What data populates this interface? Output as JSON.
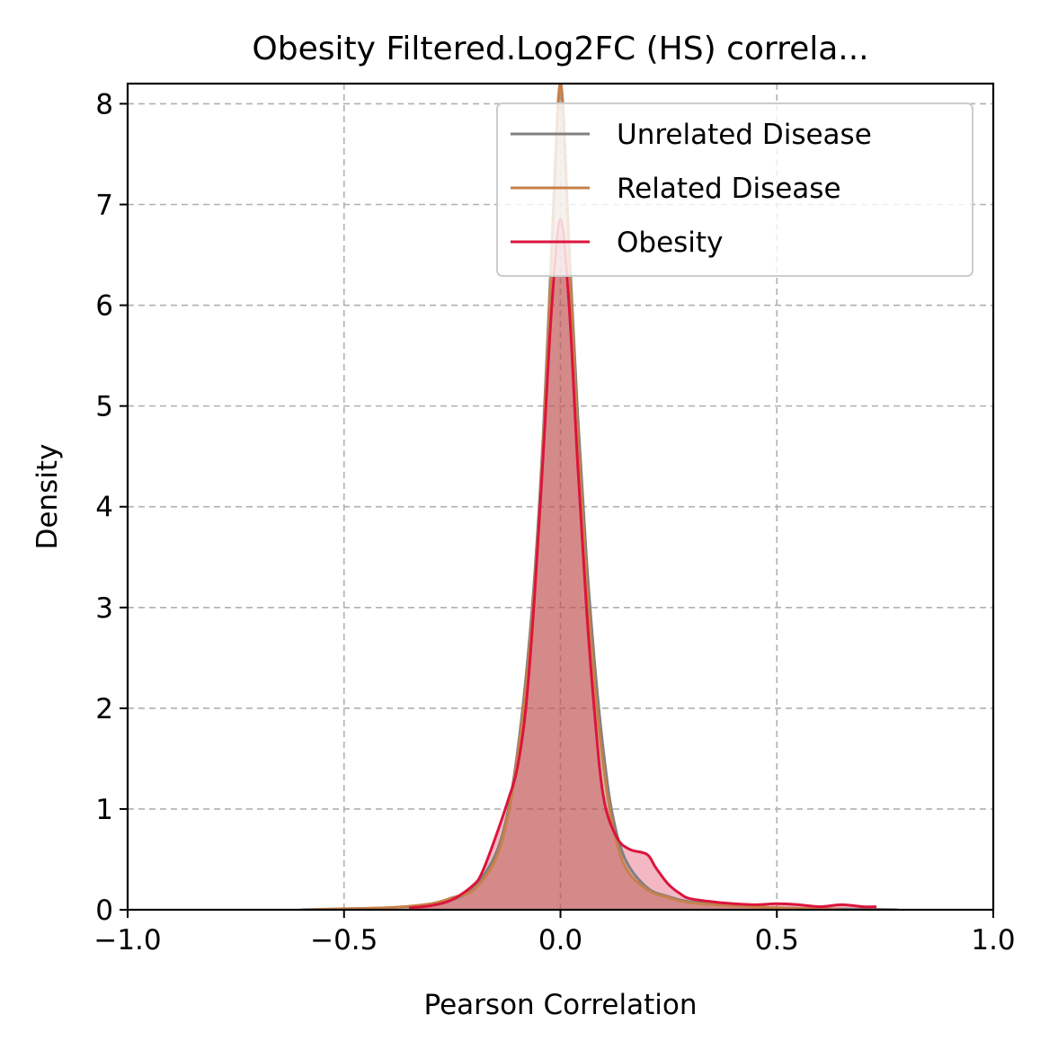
{
  "chart_data": {
    "type": "area",
    "title": "Obesity Filtered.Log2FC (HS) correla...",
    "xlabel": "Pearson Correlation",
    "ylabel": "Density",
    "xlim": [
      -1.0,
      1.0
    ],
    "ylim": [
      0,
      8.2
    ],
    "xticks": [
      -1.0,
      -0.5,
      0.0,
      0.5,
      1.0
    ],
    "xtick_labels": [
      "−1.0",
      "−0.5",
      "0.0",
      "0.5",
      "1.0"
    ],
    "yticks": [
      0,
      1,
      2,
      3,
      4,
      5,
      6,
      7,
      8
    ],
    "ytick_labels": [
      "0",
      "1",
      "2",
      "3",
      "4",
      "5",
      "6",
      "7",
      "8"
    ],
    "grid": true,
    "legend_position": "top-right",
    "series": [
      {
        "name": "Unrelated Disease",
        "color": "#808080",
        "x": [
          -0.6,
          -0.5,
          -0.4,
          -0.3,
          -0.25,
          -0.2,
          -0.15,
          -0.12,
          -0.1,
          -0.08,
          -0.06,
          -0.04,
          -0.02,
          0.0,
          0.02,
          0.04,
          0.06,
          0.08,
          0.1,
          0.12,
          0.15,
          0.2,
          0.25,
          0.3,
          0.4,
          0.5,
          0.6,
          0.7,
          0.78
        ],
        "y": [
          0.0,
          0.01,
          0.02,
          0.05,
          0.1,
          0.22,
          0.55,
          1.0,
          1.55,
          2.3,
          3.3,
          4.7,
          6.6,
          8.2,
          6.6,
          4.9,
          3.5,
          2.4,
          1.55,
          0.95,
          0.5,
          0.22,
          0.13,
          0.08,
          0.04,
          0.02,
          0.01,
          0.005,
          0.0
        ]
      },
      {
        "name": "Related Disease",
        "color": "#c8814a",
        "x": [
          -0.58,
          -0.5,
          -0.4,
          -0.3,
          -0.25,
          -0.2,
          -0.15,
          -0.12,
          -0.1,
          -0.08,
          -0.06,
          -0.04,
          -0.02,
          0.0,
          0.02,
          0.04,
          0.06,
          0.08,
          0.1,
          0.12,
          0.15,
          0.2,
          0.25,
          0.3,
          0.4,
          0.5,
          0.6,
          0.65
        ],
        "y": [
          0.0,
          0.01,
          0.02,
          0.06,
          0.12,
          0.2,
          0.5,
          0.95,
          1.5,
          2.2,
          3.2,
          4.6,
          6.5,
          8.2,
          6.5,
          4.7,
          3.3,
          2.2,
          1.4,
          0.85,
          0.42,
          0.2,
          0.12,
          0.07,
          0.04,
          0.02,
          0.01,
          0.0
        ]
      },
      {
        "name": "Obesity",
        "color": "#dc143c",
        "x": [
          -0.35,
          -0.3,
          -0.25,
          -0.2,
          -0.18,
          -0.15,
          -0.12,
          -0.1,
          -0.08,
          -0.06,
          -0.04,
          -0.02,
          0.0,
          0.02,
          0.04,
          0.06,
          0.08,
          0.1,
          0.13,
          0.16,
          0.2,
          0.22,
          0.25,
          0.28,
          0.3,
          0.35,
          0.4,
          0.45,
          0.5,
          0.55,
          0.6,
          0.65,
          0.7,
          0.73
        ],
        "y": [
          0.02,
          0.04,
          0.1,
          0.25,
          0.38,
          0.72,
          1.1,
          1.4,
          2.0,
          3.1,
          4.5,
          6.0,
          6.85,
          6.0,
          4.4,
          3.0,
          1.9,
          1.1,
          0.72,
          0.6,
          0.55,
          0.42,
          0.25,
          0.15,
          0.11,
          0.08,
          0.06,
          0.05,
          0.06,
          0.05,
          0.03,
          0.05,
          0.03,
          0.03
        ]
      }
    ]
  }
}
